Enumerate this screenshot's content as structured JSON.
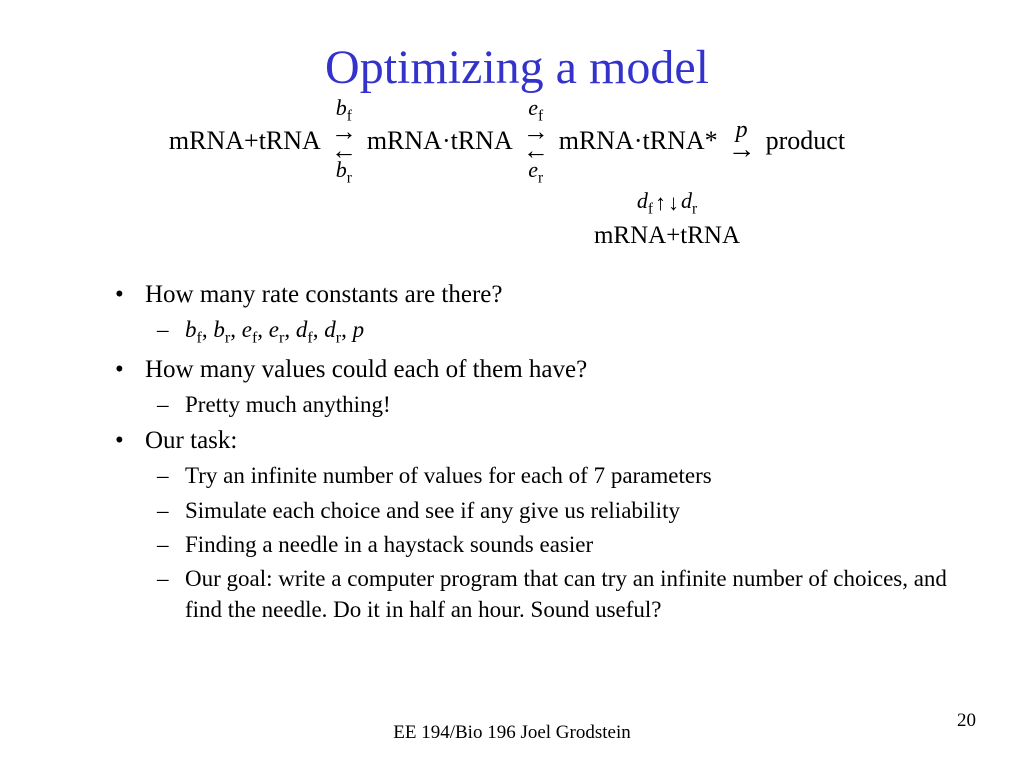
{
  "title": "Optimizing a model",
  "title_color": "#3333cc",
  "equation": {
    "term1": "mRNA+tRNA",
    "rate1_fwd": "b",
    "rate1_fwd_sub": "f",
    "rate1_rev": "b",
    "rate1_rev_sub": "r",
    "term2": "mRNA·tRNA",
    "rate2_fwd": "e",
    "rate2_fwd_sub": "f",
    "rate2_rev": "e",
    "rate2_rev_sub": "r",
    "term3": "mRNA·tRNA*",
    "rate3": "p",
    "term4": "product",
    "down_fwd": "d",
    "down_fwd_sub": "f",
    "down_rev": "d",
    "down_rev_sub": "r",
    "down_term": "mRNA+tRNA"
  },
  "bullets": [
    {
      "level": 1,
      "html": "How many rate constants are there?"
    },
    {
      "level": 2,
      "html": "<span class='ital'>b</span><span class='sub'>f</span>, <span class='ital'>b</span><span class='sub'>r</span>, <span class='ital'>e</span><span class='sub'>f</span>, <span class='ital'>e</span><span class='sub'>r</span>, <span class='ital'>d</span><span class='sub'>f</span>, <span class='ital'>d</span><span class='sub'>r</span>, <span class='ital'>p</span>"
    },
    {
      "level": 1,
      "html": "How many values could each of them have?"
    },
    {
      "level": 2,
      "html": "Pretty much anything!"
    },
    {
      "level": 1,
      "html": "Our task:"
    },
    {
      "level": 2,
      "html": "Try an infinite number of values for each of 7 parameters"
    },
    {
      "level": 2,
      "html": "Simulate each choice and see if any give us reliability"
    },
    {
      "level": 2,
      "html": "Finding a needle in a haystack sounds easier"
    },
    {
      "level": 2,
      "html": "Our goal: write a computer program that can try an infinite number of choices, and find the needle. Do it in half an hour. Sound useful?"
    }
  ],
  "footer": "EE 194/Bio 196 Joel Grodstein",
  "page_number": "20"
}
